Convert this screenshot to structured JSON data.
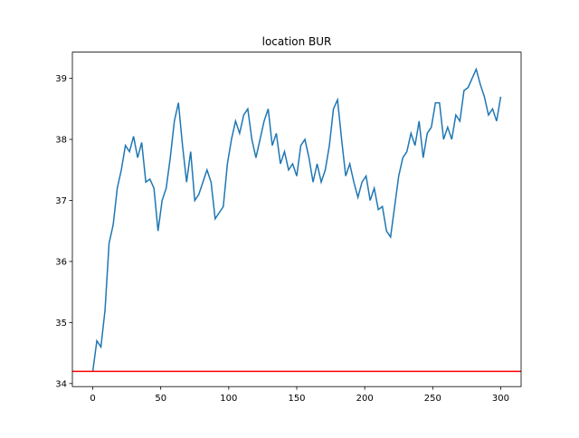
{
  "chart_data": {
    "type": "line",
    "title": "location BUR",
    "x": [
      0,
      3,
      6,
      9,
      12,
      15,
      18,
      21,
      24,
      27,
      30,
      33,
      36,
      39,
      42,
      45,
      48,
      51,
      54,
      57,
      60,
      63,
      66,
      69,
      72,
      75,
      78,
      81,
      84,
      87,
      90,
      93,
      96,
      99,
      102,
      105,
      108,
      111,
      114,
      117,
      120,
      123,
      126,
      129,
      132,
      135,
      138,
      141,
      144,
      147,
      150,
      153,
      156,
      159,
      162,
      165,
      168,
      171,
      174,
      177,
      180,
      183,
      186,
      189,
      192,
      195,
      198,
      201,
      204,
      207,
      210,
      213,
      216,
      219,
      222,
      225,
      228,
      231,
      234,
      237,
      240,
      243,
      246,
      249,
      252,
      255,
      258,
      261,
      264,
      267,
      270,
      273,
      276,
      279,
      282,
      285,
      288,
      291,
      294,
      297,
      300
    ],
    "series": [
      {
        "color": "#1f77b4",
        "values": [
          34.2,
          34.7,
          34.6,
          35.2,
          36.3,
          36.6,
          37.2,
          37.5,
          37.9,
          37.8,
          38.05,
          37.7,
          37.95,
          37.3,
          37.35,
          37.2,
          36.5,
          37.0,
          37.2,
          37.7,
          38.3,
          38.6,
          37.9,
          37.3,
          37.8,
          37.0,
          37.1,
          37.3,
          37.5,
          37.3,
          36.7,
          36.8,
          36.9,
          37.6,
          38.0,
          38.3,
          38.1,
          38.4,
          38.5,
          38.0,
          37.7,
          38.0,
          38.3,
          38.5,
          37.9,
          38.1,
          37.6,
          37.8,
          37.5,
          37.6,
          37.4,
          37.9,
          38.0,
          37.7,
          37.3,
          37.6,
          37.3,
          37.5,
          37.9,
          38.5,
          38.65,
          38.0,
          37.4,
          37.6,
          37.3,
          37.05,
          37.3,
          37.4,
          37.0,
          37.2,
          36.85,
          36.9,
          36.5,
          36.4,
          36.9,
          37.4,
          37.7,
          37.8,
          38.1,
          37.9,
          38.3,
          37.7,
          38.1,
          38.2,
          38.6,
          38.6,
          38.0,
          38.2,
          38.0,
          38.4,
          38.3,
          38.8,
          38.85,
          39.0,
          39.15,
          38.9,
          38.7,
          38.4,
          38.5,
          38.3,
          38.7
        ]
      }
    ],
    "hline": {
      "value": 34.2,
      "color": "#ff0000"
    },
    "xlim": [
      -15,
      315
    ],
    "xticks": [
      0,
      50,
      100,
      150,
      200,
      250,
      300
    ],
    "ylim": [
      33.95,
      39.43
    ],
    "yticks": [
      34,
      35,
      36,
      37,
      38,
      39
    ]
  }
}
